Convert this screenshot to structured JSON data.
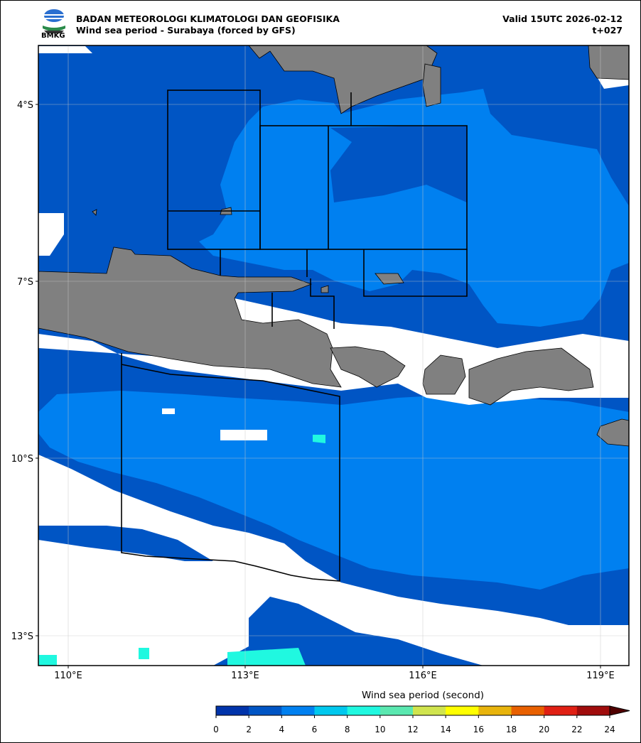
{
  "header": {
    "agency": "BADAN METEOROLOGI KLIMATOLOGI DAN GEOFISIKA",
    "subtitle": "Wind sea period - Surabaya (forced by GFS)",
    "valid": "Valid 15UTC 2026-02-12",
    "lead": "t+027",
    "logo_text": "BMKG"
  },
  "map": {
    "lon_ticks": [
      "110°E",
      "113°E",
      "116°E",
      "119°E"
    ],
    "lat_ticks": [
      "4°S",
      "7°S",
      "10°S",
      "13°S"
    ],
    "land_color": "#808080",
    "no_data_color": "#ffffff",
    "grid": true
  },
  "colorbar": {
    "label": "Wind sea period (second)",
    "ticks": [
      "0",
      "2",
      "4",
      "6",
      "8",
      "10",
      "12",
      "14",
      "16",
      "18",
      "20",
      "22",
      "24"
    ],
    "colors": [
      "#0033aa",
      "#0055c4",
      "#0080f0",
      "#00c8ee",
      "#20f8e0",
      "#5ae8b0",
      "#d0e44e",
      "#ffff00",
      "#e8b40c",
      "#e86000",
      "#e02014",
      "#a00c0c"
    ],
    "extend_color": "#500000",
    "extend": "max"
  }
}
